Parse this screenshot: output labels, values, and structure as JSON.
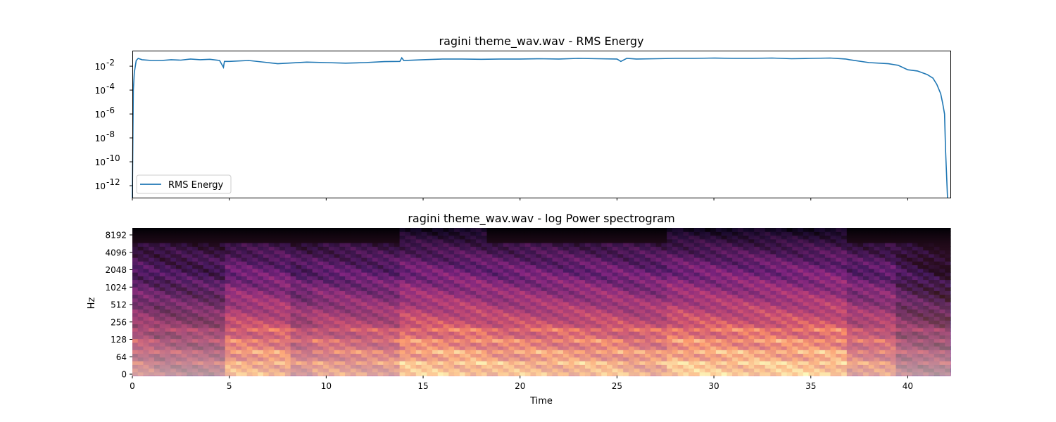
{
  "chart_data": [
    {
      "type": "line",
      "title": "ragini theme_wav.wav - RMS Energy",
      "xlabel": "",
      "ylabel": "",
      "yscale": "log",
      "xlim": [
        0,
        42.2
      ],
      "ylim": [
        1e-13,
        0.2
      ],
      "yticks": [
        {
          "value": 0.01,
          "base": "10",
          "exp": "-2"
        },
        {
          "value": 0.0001,
          "base": "10",
          "exp": "-4"
        },
        {
          "value": 1e-06,
          "base": "10",
          "exp": "-6"
        },
        {
          "value": 1e-08,
          "base": "10",
          "exp": "-8"
        },
        {
          "value": 1e-10,
          "base": "10",
          "exp": "-10"
        },
        {
          "value": 1e-12,
          "base": "10",
          "exp": "-12"
        }
      ],
      "legend": {
        "placement": "lower-left",
        "entries": [
          "RMS Energy"
        ]
      },
      "color": "#1f77b4",
      "series": [
        {
          "name": "RMS Energy",
          "x": [
            0.0,
            0.05,
            0.1,
            0.2,
            0.3,
            0.5,
            1.0,
            1.5,
            2.0,
            2.5,
            3.0,
            3.5,
            4.0,
            4.5,
            4.7,
            4.75,
            5.0,
            6.0,
            7.0,
            7.5,
            8.0,
            9.0,
            10.0,
            11.0,
            12.0,
            13.0,
            13.8,
            13.9,
            14.0,
            15.0,
            16.0,
            17.0,
            18.0,
            19.0,
            20.0,
            21.0,
            22.0,
            23.0,
            24.0,
            25.0,
            25.2,
            25.5,
            26.0,
            27.0,
            28.0,
            29.0,
            30.0,
            31.0,
            32.0,
            33.0,
            34.0,
            35.0,
            36.0,
            36.8,
            37.0,
            38.0,
            39.0,
            39.5,
            40.0,
            40.5,
            41.0,
            41.3,
            41.5,
            41.7,
            41.8,
            41.9,
            41.95,
            42.0,
            42.05,
            42.08
          ],
          "y": [
            1e-13,
            0.0001,
            0.003,
            0.03,
            0.045,
            0.035,
            0.03,
            0.03,
            0.035,
            0.032,
            0.04,
            0.035,
            0.038,
            0.03,
            0.008,
            0.025,
            0.025,
            0.03,
            0.02,
            0.016,
            0.018,
            0.022,
            0.02,
            0.018,
            0.02,
            0.024,
            0.025,
            0.05,
            0.03,
            0.035,
            0.04,
            0.04,
            0.038,
            0.04,
            0.04,
            0.042,
            0.04,
            0.045,
            0.042,
            0.04,
            0.025,
            0.045,
            0.04,
            0.042,
            0.045,
            0.045,
            0.048,
            0.045,
            0.045,
            0.048,
            0.042,
            0.045,
            0.048,
            0.04,
            0.035,
            0.02,
            0.016,
            0.012,
            0.005,
            0.004,
            0.002,
            0.001,
            0.0003,
            5e-05,
            8e-06,
            1e-06,
            1e-09,
            1e-11,
            1e-13,
            1e-13
          ]
        }
      ]
    },
    {
      "type": "heatmap",
      "title": "ragini theme_wav.wav - log Power spectrogram",
      "xlabel": "Time",
      "ylabel": "Hz",
      "yscale": "log",
      "colormap": "magma",
      "xlim": [
        0,
        42.2
      ],
      "xticks": [
        "0",
        "5",
        "10",
        "15",
        "20",
        "25",
        "30",
        "35",
        "40"
      ],
      "yticks": [
        "0",
        "64",
        "128",
        "256",
        "512",
        "1024",
        "2048",
        "4096",
        "8192"
      ],
      "segments": [
        {
          "start": 0.0,
          "end": 1.0,
          "level": 0.5
        },
        {
          "start": 1.0,
          "end": 4.7,
          "level": 0.42
        },
        {
          "start": 4.7,
          "end": 8.2,
          "level": 0.72
        },
        {
          "start": 8.2,
          "end": 9.3,
          "level": 0.55
        },
        {
          "start": 9.3,
          "end": 13.8,
          "level": 0.62
        },
        {
          "start": 13.8,
          "end": 18.2,
          "level": 0.78
        },
        {
          "start": 18.2,
          "end": 25.3,
          "level": 0.74
        },
        {
          "start": 25.3,
          "end": 27.5,
          "level": 0.7
        },
        {
          "start": 27.5,
          "end": 36.8,
          "level": 0.8
        },
        {
          "start": 36.8,
          "end": 39.5,
          "level": 0.62
        },
        {
          "start": 39.5,
          "end": 42.2,
          "level": 0.4
        }
      ]
    }
  ]
}
